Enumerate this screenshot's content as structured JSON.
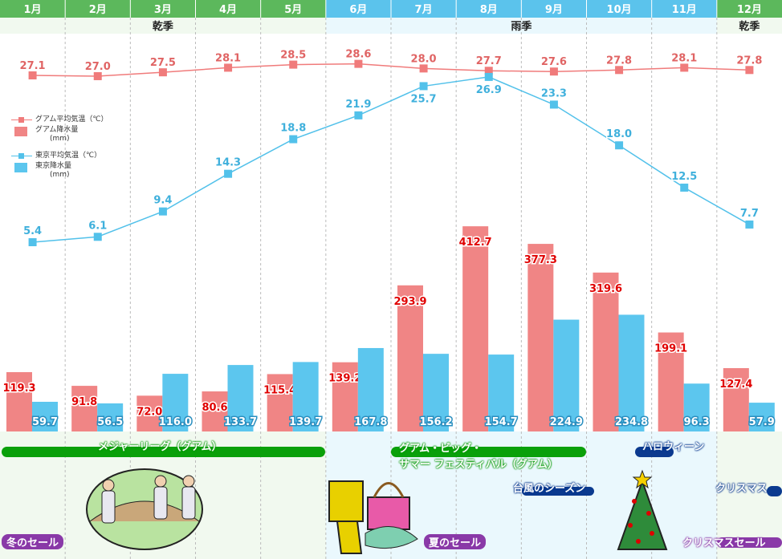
{
  "chart_data": {
    "type": "bar+line",
    "categories": [
      "1月",
      "2月",
      "3月",
      "4月",
      "5月",
      "6月",
      "7月",
      "8月",
      "9月",
      "10月",
      "11月",
      "12月"
    ],
    "seasons": [
      {
        "label": "乾季",
        "months": [
          1,
          5
        ]
      },
      {
        "label": "雨季",
        "months": [
          6,
          11
        ]
      },
      {
        "label": "乾季",
        "months": [
          12,
          12
        ]
      }
    ],
    "series": [
      {
        "name": "グアム平均気温（℃）",
        "type": "line",
        "color": "#f07b7b",
        "values": [
          27.1,
          27.0,
          27.5,
          28.1,
          28.5,
          28.6,
          28.0,
          27.7,
          27.6,
          27.8,
          28.1,
          27.8
        ]
      },
      {
        "name": "東京平均気温（℃）",
        "type": "line",
        "color": "#52c1ea",
        "values": [
          5.4,
          6.1,
          9.4,
          14.3,
          18.8,
          21.9,
          25.7,
          26.9,
          23.3,
          18.0,
          12.5,
          7.7
        ]
      },
      {
        "name": "グアム降水量",
        "unit": "(mm)",
        "type": "bar",
        "color": "#f08585",
        "values": [
          119.3,
          91.8,
          72.0,
          80.6,
          115.4,
          139.2,
          293.9,
          412.7,
          377.3,
          319.6,
          199.1,
          127.4
        ]
      },
      {
        "name": "東京降水量",
        "unit": "(mm)",
        "type": "bar",
        "color": "#5cc6ee",
        "values": [
          59.7,
          56.5,
          116.0,
          133.7,
          139.7,
          167.8,
          156.2,
          154.7,
          224.9,
          234.8,
          96.3,
          57.9
        ]
      }
    ],
    "legend_placement": "left",
    "grid": "vertical dashed"
  },
  "events": {
    "mlb": "メジャーリーグ（グアム）",
    "summer_fest_1": "グアム・ビッグ・",
    "summer_fest_2": "サマー フェスティバル（グアム）",
    "halloween": "ハロウィーン",
    "typhoon": "台風のシーズン",
    "christmas": "クリスマス",
    "winter_sale": "冬のセール",
    "summer_sale": "夏のセール",
    "xmas_sale": "クリスマスセール"
  },
  "colors": {
    "dry_header": "#5cb85c",
    "wet_header": "#5bc3ec",
    "dry_bg": "#f1f9ef",
    "wet_bg": "#eaf8fd"
  }
}
